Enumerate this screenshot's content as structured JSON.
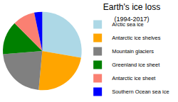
{
  "chart_data": {
    "type": "pie",
    "title": "Earth's ice loss",
    "subtitle": "(1994-2017)",
    "categories": [
      "Arctic sea ice",
      "Antarctic ice shelves",
      "Mountain glaciers",
      "Greenland ice sheet",
      "Antarctic ice sheet",
      "Southern Ocean sea ice"
    ],
    "values": [
      7.6,
      6.5,
      6.1,
      3.8,
      2.5,
      0.9
    ],
    "colors": [
      "#add8e6",
      "#ffa500",
      "#808080",
      "#008000",
      "#fa8072",
      "#0000ff"
    ],
    "legend": "right"
  }
}
